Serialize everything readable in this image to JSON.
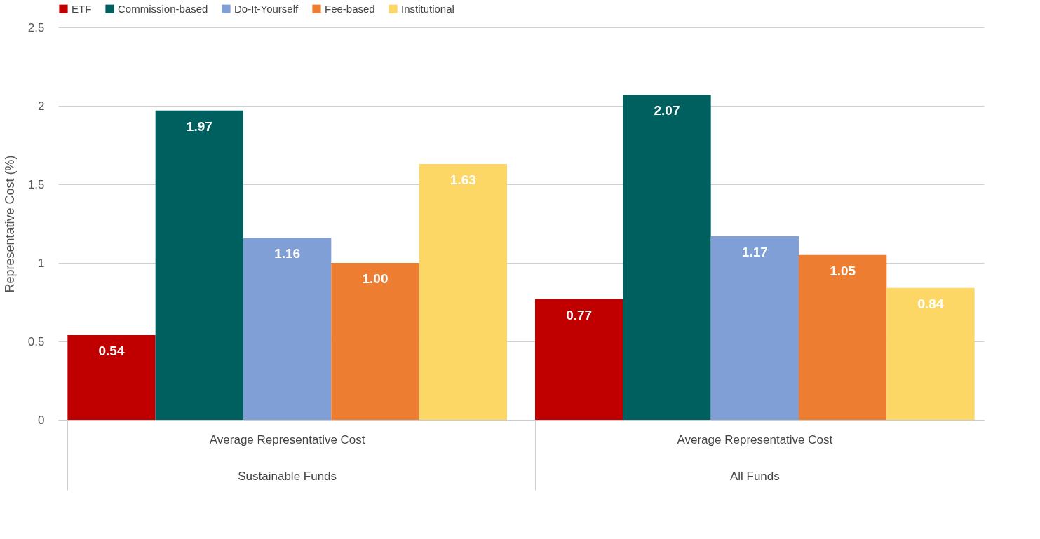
{
  "chart_data": {
    "type": "bar",
    "ylabel": "Representative Cost (%)",
    "categories": [
      "Average Representative Cost\nSustainable Funds",
      "Average Representative Cost\nAll Funds"
    ],
    "series": [
      {
        "name": "ETF",
        "color": "#c00000",
        "values": [
          0.54,
          0.77
        ],
        "value_labels": [
          "0.54",
          "0.77"
        ]
      },
      {
        "name": "Commission-based",
        "color": "#006060",
        "values": [
          1.97,
          2.07
        ],
        "value_labels": [
          "1.97",
          "2.07"
        ]
      },
      {
        "name": "Do-It-Yourself",
        "color": "#7f9fd6",
        "values": [
          1.16,
          1.17
        ],
        "value_labels": [
          "1.16",
          "1.17"
        ]
      },
      {
        "name": "Fee-based",
        "color": "#ed7d31",
        "values": [
          1.0,
          1.05
        ],
        "value_labels": [
          "1.00",
          "1.05"
        ]
      },
      {
        "name": "Institutional",
        "color": "#fdd766",
        "values": [
          1.63,
          0.84
        ],
        "value_labels": [
          "1.63",
          "0.84"
        ]
      }
    ],
    "ylim": [
      0,
      2.5
    ],
    "yticks": [
      0,
      0.5,
      1,
      1.5,
      2,
      2.5
    ],
    "grid": "y",
    "legend": "top left"
  }
}
